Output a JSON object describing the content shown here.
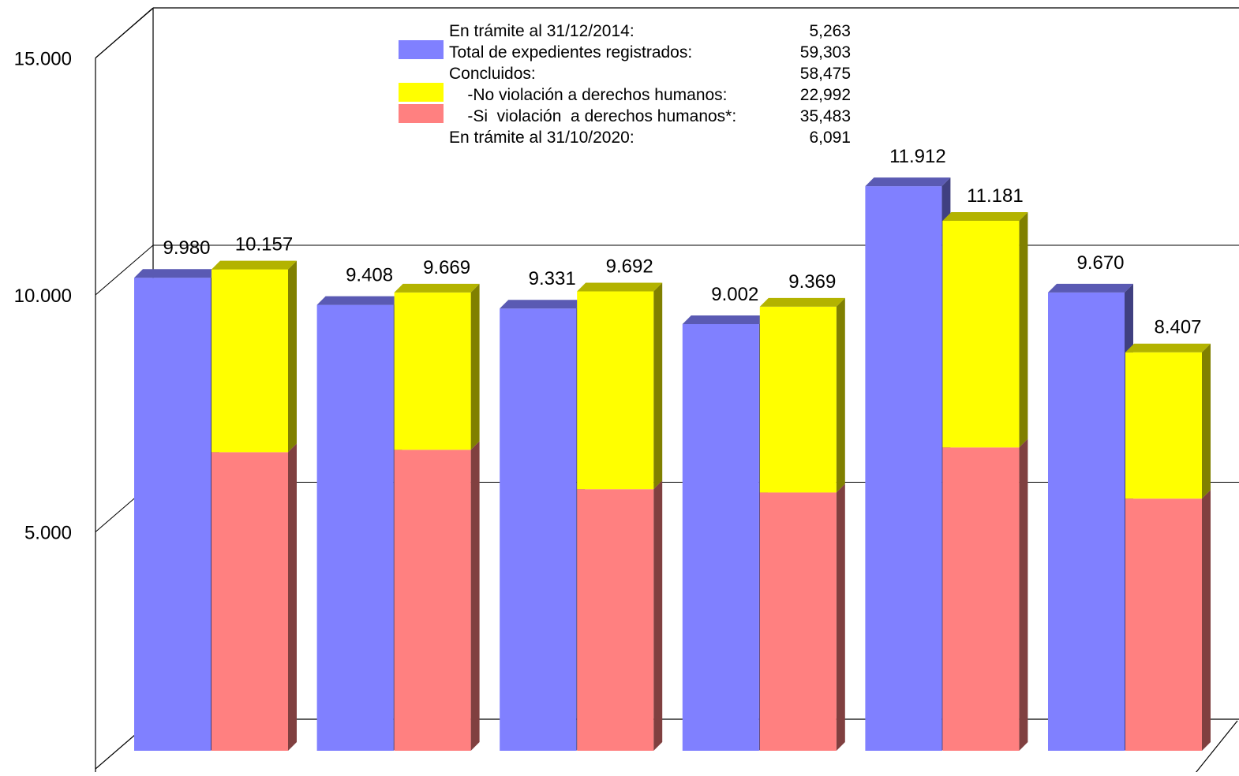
{
  "chart_data": {
    "type": "bar",
    "style": "3d-grouped-stacked",
    "ylim": [
      0,
      15000
    ],
    "yticks": [
      5000,
      10000,
      15000
    ],
    "ytick_labels": [
      "5.000",
      "10.000",
      "15.000"
    ],
    "grid": true,
    "legend_position": "top-center",
    "groups": [
      {
        "total": 9980,
        "total_label": "9.980",
        "concluded": 10157,
        "concluded_label": "10.157",
        "si": 6300
      },
      {
        "total": 9408,
        "total_label": "9.408",
        "concluded": 9669,
        "concluded_label": "9.669",
        "si": 6350
      },
      {
        "total": 9331,
        "total_label": "9.331",
        "concluded": 9692,
        "concluded_label": "9.692",
        "si": 5520
      },
      {
        "total": 9002,
        "total_label": "9.002",
        "concluded": 9369,
        "concluded_label": "9.369",
        "si": 5450
      },
      {
        "total": 11912,
        "total_label": "11.912",
        "concluded": 11181,
        "concluded_label": "11.181",
        "si": 6400
      },
      {
        "total": 9670,
        "total_label": "9.670",
        "concluded": 8407,
        "concluded_label": "8.407",
        "si": 5320
      }
    ],
    "legend": [
      {
        "label": "En trámite al 31/12/2014:",
        "value": "5,263"
      },
      {
        "label": "Total de expedientes registrados:",
        "value": "59,303",
        "swatch": "#8080ff"
      },
      {
        "label": "Concluidos:",
        "value": "58,475"
      },
      {
        "label": "    -No violación a derechos humanos:",
        "value": "22,992",
        "swatch": "#ffff00"
      },
      {
        "label": "    -Si  violación  a derechos humanos*:",
        "value": "35,483",
        "swatch": "#ff8080"
      },
      {
        "label": "En trámite al 31/10/2020:",
        "value": "6,091"
      }
    ],
    "colors": {
      "total": {
        "front": "#8080ff",
        "top": "#5a5ab3",
        "side": "#404080"
      },
      "no_violacion": {
        "front": "#ffff00",
        "top": "#b3b300",
        "side": "#808000"
      },
      "si_violacion": {
        "front": "#ff8080",
        "top": "#b35a5a",
        "side": "#804040"
      }
    }
  }
}
